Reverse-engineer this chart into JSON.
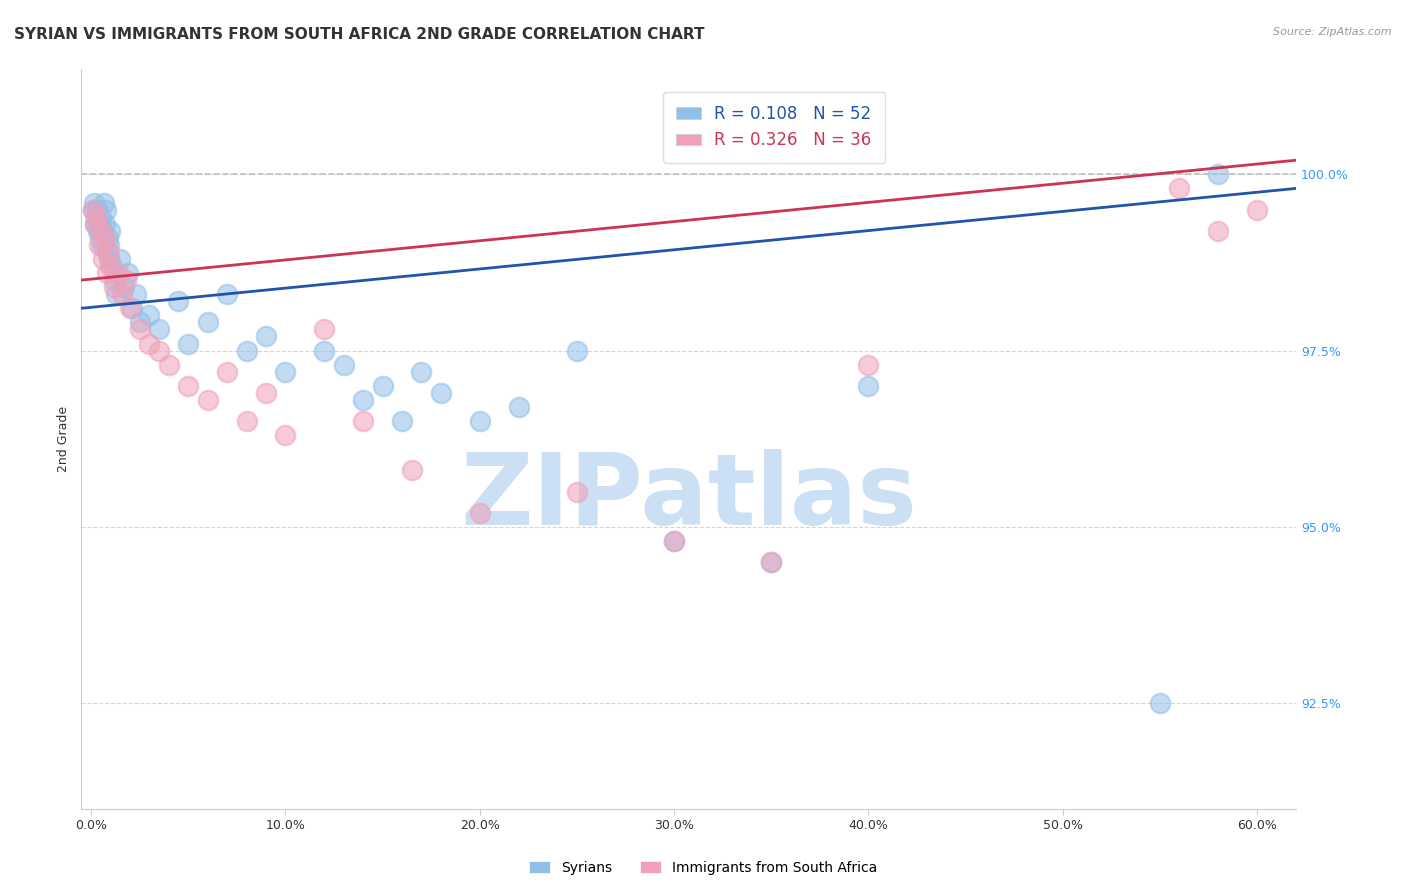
{
  "title": "SYRIAN VS IMMIGRANTS FROM SOUTH AFRICA 2ND GRADE CORRELATION CHART",
  "source": "Source: ZipAtlas.com",
  "xlabel_ticks": [
    "0.0%",
    "10.0%",
    "20.0%",
    "30.0%",
    "40.0%",
    "50.0%",
    "60.0%"
  ],
  "xlabel_vals": [
    0.0,
    10.0,
    20.0,
    30.0,
    40.0,
    50.0,
    60.0
  ],
  "ylabel": "2nd Grade",
  "ylim": [
    91.0,
    101.5
  ],
  "xlim": [
    -0.5,
    62.0
  ],
  "yticks": [
    92.5,
    95.0,
    97.5,
    100.0
  ],
  "ytick_labels": [
    "92.5%",
    "95.0%",
    "97.5%",
    "100.0%"
  ],
  "blue_color": "#90bfe8",
  "pink_color": "#f0a0b8",
  "blue_line_color": "#2255aa",
  "pink_line_color": "#cc3355",
  "legend_r_blue": "R = 0.108",
  "legend_n_blue": "N = 52",
  "legend_r_pink": "R = 0.326",
  "legend_n_pink": "N = 36",
  "blue_scatter_x": [
    0.1,
    0.15,
    0.2,
    0.25,
    0.3,
    0.35,
    0.4,
    0.45,
    0.5,
    0.55,
    0.6,
    0.65,
    0.7,
    0.75,
    0.8,
    0.85,
    0.9,
    0.95,
    1.0,
    1.1,
    1.2,
    1.3,
    1.5,
    1.7,
    1.9,
    2.1,
    2.3,
    2.5,
    3.0,
    3.5,
    4.5,
    5.0,
    6.0,
    7.0,
    8.0,
    9.0,
    10.0,
    12.0,
    13.0,
    14.0,
    15.0,
    16.0,
    17.0,
    18.0,
    20.0,
    22.0,
    25.0,
    30.0,
    35.0,
    40.0,
    55.0,
    58.0
  ],
  "blue_scatter_y": [
    99.5,
    99.6,
    99.3,
    99.4,
    99.5,
    99.2,
    99.3,
    99.1,
    99.4,
    99.0,
    99.2,
    99.6,
    99.3,
    99.5,
    98.9,
    99.1,
    98.8,
    99.0,
    99.2,
    98.7,
    98.5,
    98.3,
    98.8,
    98.4,
    98.6,
    98.1,
    98.3,
    97.9,
    98.0,
    97.8,
    98.2,
    97.6,
    97.9,
    98.3,
    97.5,
    97.7,
    97.2,
    97.5,
    97.3,
    96.8,
    97.0,
    96.5,
    97.2,
    96.9,
    96.5,
    96.7,
    97.5,
    94.8,
    94.5,
    97.0,
    92.5,
    100.0
  ],
  "pink_scatter_x": [
    0.1,
    0.2,
    0.3,
    0.4,
    0.5,
    0.6,
    0.7,
    0.8,
    0.9,
    1.0,
    1.2,
    1.4,
    1.6,
    1.8,
    2.0,
    2.5,
    3.0,
    3.5,
    4.0,
    5.0,
    6.0,
    7.0,
    8.0,
    9.0,
    10.0,
    12.0,
    14.0,
    16.5,
    20.0,
    25.0,
    30.0,
    35.0,
    40.0,
    56.0,
    58.0,
    60.0
  ],
  "pink_scatter_y": [
    99.5,
    99.3,
    99.4,
    99.0,
    99.2,
    98.8,
    99.1,
    98.6,
    98.9,
    98.7,
    98.4,
    98.6,
    98.3,
    98.5,
    98.1,
    97.8,
    97.6,
    97.5,
    97.3,
    97.0,
    96.8,
    97.2,
    96.5,
    96.9,
    96.3,
    97.8,
    96.5,
    95.8,
    95.2,
    95.5,
    94.8,
    94.5,
    97.3,
    99.8,
    99.2,
    99.5
  ],
  "watermark_text": "ZIPatlas",
  "watermark_color": "#cce0f5",
  "watermark_fontsize": 72,
  "background_color": "#ffffff",
  "title_fontsize": 11,
  "axis_label_fontsize": 9,
  "tick_fontsize": 9,
  "legend_fontsize": 12
}
